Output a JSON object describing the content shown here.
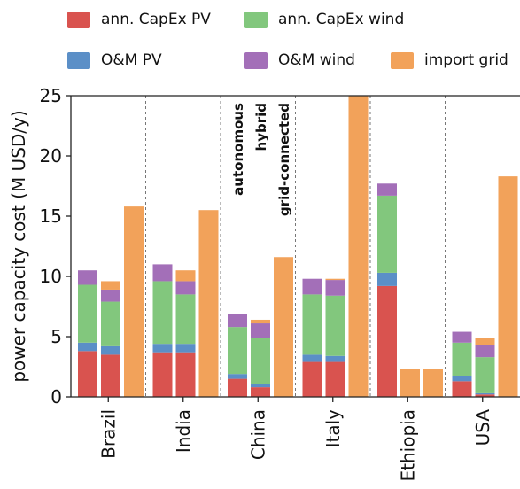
{
  "chart_data": {
    "type": "bar",
    "stacked": true,
    "ylabel": "power capacity cost (M USD/y)",
    "ylim": [
      0,
      25
    ],
    "yticks": [
      0,
      5,
      10,
      15,
      20,
      25
    ],
    "categories": [
      "Brazil",
      "India",
      "China",
      "Italy",
      "Ethiopia",
      "USA"
    ],
    "configurations": [
      "autonomous",
      "hybrid",
      "grid-connected"
    ],
    "components": [
      {
        "name": "ann. CapEx PV",
        "color": "#d9534f"
      },
      {
        "name": "O&M PV",
        "color": "#5b8fc7"
      },
      {
        "name": "ann. CapEx wind",
        "color": "#82c77d"
      },
      {
        "name": "O&M wind",
        "color": "#a36fb8"
      },
      {
        "name": "import grid",
        "color": "#f2a25a"
      }
    ],
    "bars": [
      {
        "country": "Brazil",
        "config": "autonomous",
        "values": [
          3.8,
          0.7,
          4.8,
          1.2,
          0
        ]
      },
      {
        "country": "Brazil",
        "config": "hybrid",
        "values": [
          3.5,
          0.7,
          3.7,
          1.0,
          0.7
        ]
      },
      {
        "country": "Brazil",
        "config": "grid-connected",
        "values": [
          0,
          0,
          0,
          0,
          15.8
        ]
      },
      {
        "country": "India",
        "config": "autonomous",
        "values": [
          3.7,
          0.7,
          5.2,
          1.4,
          0
        ]
      },
      {
        "country": "India",
        "config": "hybrid",
        "values": [
          3.7,
          0.7,
          4.1,
          1.1,
          0.9
        ]
      },
      {
        "country": "India",
        "config": "grid-connected",
        "values": [
          0,
          0,
          0,
          0,
          15.5
        ]
      },
      {
        "country": "China",
        "config": "autonomous",
        "values": [
          1.5,
          0.4,
          3.9,
          1.1,
          0
        ]
      },
      {
        "country": "China",
        "config": "hybrid",
        "values": [
          0.8,
          0.3,
          3.8,
          1.2,
          0.3
        ]
      },
      {
        "country": "China",
        "config": "grid-connected",
        "values": [
          0,
          0,
          0,
          0,
          11.6
        ]
      },
      {
        "country": "Italy",
        "config": "autonomous",
        "values": [
          2.9,
          0.6,
          5.0,
          1.3,
          0
        ]
      },
      {
        "country": "Italy",
        "config": "hybrid",
        "values": [
          2.9,
          0.5,
          5.0,
          1.3,
          0.1
        ]
      },
      {
        "country": "Italy",
        "config": "grid-connected",
        "values": [
          0,
          0,
          0,
          0,
          25.0
        ]
      },
      {
        "country": "Ethiopia",
        "config": "autonomous",
        "values": [
          9.2,
          1.1,
          6.4,
          1.0,
          0
        ]
      },
      {
        "country": "Ethiopia",
        "config": "hybrid",
        "values": [
          0,
          0,
          0,
          0,
          2.3
        ]
      },
      {
        "country": "Ethiopia",
        "config": "grid-connected",
        "values": [
          0,
          0,
          0,
          0,
          2.3
        ]
      },
      {
        "country": "USA",
        "config": "autonomous",
        "values": [
          1.3,
          0.4,
          2.8,
          0.9,
          0
        ]
      },
      {
        "country": "USA",
        "config": "hybrid",
        "values": [
          0.2,
          0.1,
          3.0,
          1.0,
          0.6
        ]
      },
      {
        "country": "USA",
        "config": "grid-connected",
        "values": [
          0,
          0,
          0,
          0,
          18.3
        ]
      }
    ]
  }
}
